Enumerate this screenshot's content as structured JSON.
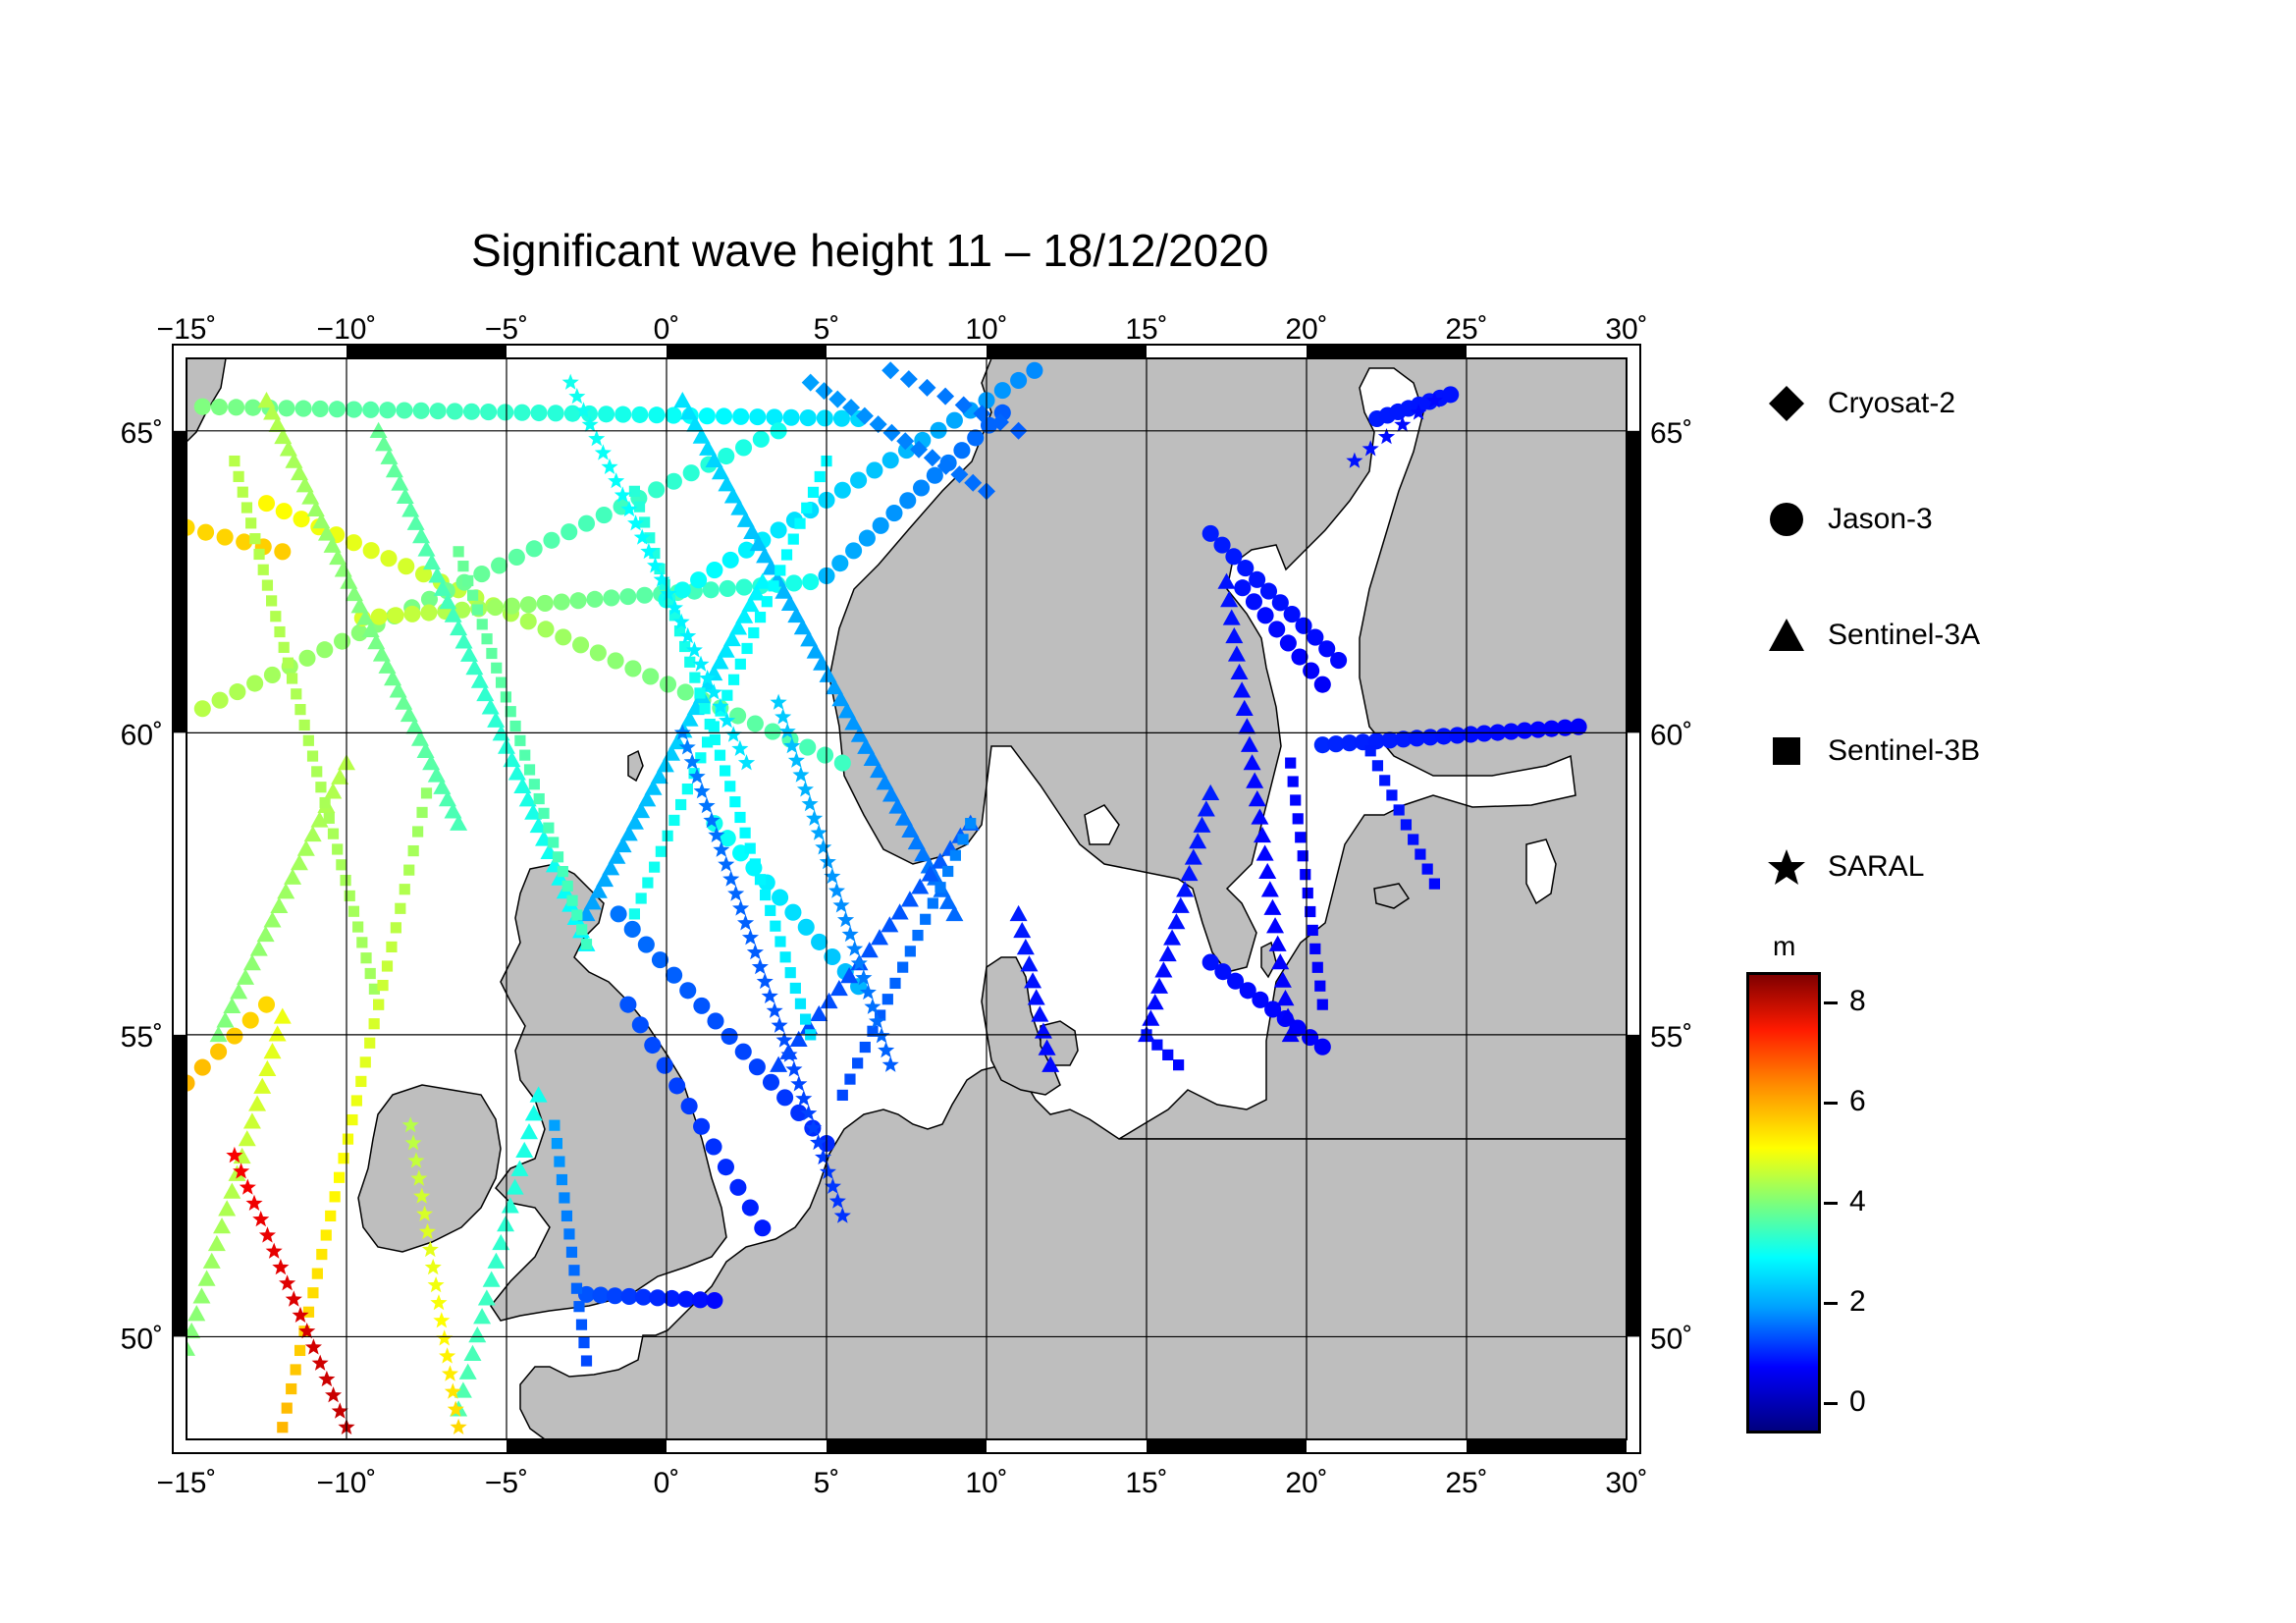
{
  "title": "Significant wave height 11 – 18/12/2020",
  "map": {
    "lon_range": [
      -15,
      30
    ],
    "lat_range": [
      48.3,
      66.2
    ],
    "lon_ticks": [
      {
        "lon": -15,
        "label": "−15˚"
      },
      {
        "lon": -10,
        "label": "−10˚"
      },
      {
        "lon": -5,
        "label": "−5˚"
      },
      {
        "lon": 0,
        "label": "0˚"
      },
      {
        "lon": 5,
        "label": "5˚"
      },
      {
        "lon": 10,
        "label": "10˚"
      },
      {
        "lon": 15,
        "label": "15˚"
      },
      {
        "lon": 20,
        "label": "20˚"
      },
      {
        "lon": 25,
        "label": "25˚"
      },
      {
        "lon": 30,
        "label": "30˚"
      }
    ],
    "lat_ticks": [
      {
        "lat": 50,
        "label": "50˚"
      },
      {
        "lat": 55,
        "label": "55˚"
      },
      {
        "lat": 60,
        "label": "60˚"
      },
      {
        "lat": 65,
        "label": "65˚"
      }
    ],
    "colors": {
      "land": "#bebebe",
      "sea": "#ffffff",
      "coast": "#000000",
      "grid": "#000000"
    }
  },
  "legend": {
    "items": [
      {
        "symbol": "diamond",
        "label": "Cryosat-2"
      },
      {
        "symbol": "circle",
        "label": "Jason-3"
      },
      {
        "symbol": "triangle",
        "label": "Sentinel-3A"
      },
      {
        "symbol": "square",
        "label": "Sentinel-3B"
      },
      {
        "symbol": "star",
        "label": "SARAL"
      }
    ]
  },
  "colorbar": {
    "unit": "m",
    "min": -0.6,
    "max": 8.6,
    "ticks": [
      {
        "value": 0,
        "label": "0"
      },
      {
        "value": 2,
        "label": "2"
      },
      {
        "value": 4,
        "label": "4"
      },
      {
        "value": 6,
        "label": "6"
      },
      {
        "value": 8,
        "label": "8"
      }
    ]
  },
  "tracks": [
    {
      "satellite": "Jason-3",
      "start": [
        -14.5,
        65.4
      ],
      "end": [
        6.0,
        65.2
      ],
      "hs": [
        4.0,
        2.5
      ],
      "n": 40
    },
    {
      "satellite": "Jason-3",
      "start": [
        -12.5,
        63.8
      ],
      "end": [
        5.5,
        59.5
      ],
      "hs": [
        5.2,
        3.4
      ],
      "n": 34
    },
    {
      "satellite": "Jason-3",
      "start": [
        -14.5,
        60.4
      ],
      "end": [
        3.5,
        65.0
      ],
      "hs": [
        4.5,
        3.0
      ],
      "n": 34
    },
    {
      "satellite": "Jason-3",
      "start": [
        -9.5,
        61.9
      ],
      "end": [
        4.5,
        62.5
      ],
      "hs": [
        4.8,
        3.0
      ],
      "n": 28
    },
    {
      "satellite": "Jason-3",
      "start": [
        0.0,
        62.2
      ],
      "end": [
        11.5,
        66.0
      ],
      "hs": [
        3.0,
        1.8
      ],
      "n": 24
    },
    {
      "satellite": "Jason-3",
      "start": [
        5.0,
        62.6
      ],
      "end": [
        10.5,
        65.3
      ],
      "hs": [
        2.2,
        1.4
      ],
      "n": 14
    },
    {
      "satellite": "Jason-3",
      "start": [
        -1.5,
        57.0
      ],
      "end": [
        5.0,
        53.2
      ],
      "hs": [
        1.6,
        0.9
      ],
      "n": 16
    },
    {
      "satellite": "Jason-3",
      "start": [
        -1.2,
        55.5
      ],
      "end": [
        3.0,
        51.8
      ],
      "hs": [
        1.3,
        0.8
      ],
      "n": 12
    },
    {
      "satellite": "Jason-3",
      "start": [
        1.5,
        58.5
      ],
      "end": [
        6.0,
        55.8
      ],
      "hs": [
        3.0,
        2.2
      ],
      "n": 12
    },
    {
      "satellite": "Jason-3",
      "start": [
        -2.5,
        50.7
      ],
      "end": [
        1.5,
        50.6
      ],
      "hs": [
        1.3,
        0.6
      ],
      "n": 10
    },
    {
      "satellite": "Jason-3",
      "start": [
        17.0,
        63.3
      ],
      "end": [
        21.0,
        61.2
      ],
      "hs": [
        0.8,
        0.6
      ],
      "n": 12
    },
    {
      "satellite": "Jason-3",
      "start": [
        18.0,
        62.4
      ],
      "end": [
        20.5,
        60.8
      ],
      "hs": [
        0.7,
        0.5
      ],
      "n": 8
    },
    {
      "satellite": "Jason-3",
      "start": [
        20.5,
        59.8
      ],
      "end": [
        28.5,
        60.1
      ],
      "hs": [
        0.9,
        0.5
      ],
      "n": 20
    },
    {
      "satellite": "Jason-3",
      "start": [
        22.2,
        65.2
      ],
      "end": [
        24.5,
        65.6
      ],
      "hs": [
        0.8,
        0.7
      ],
      "n": 8
    },
    {
      "satellite": "Jason-3",
      "start": [
        17.0,
        56.2
      ],
      "end": [
        20.5,
        54.8
      ],
      "hs": [
        0.7,
        0.5
      ],
      "n": 10
    },
    {
      "satellite": "Jason-3",
      "start": [
        -15.0,
        54.2
      ],
      "end": [
        -12.5,
        55.5
      ],
      "hs": [
        5.8,
        5.5
      ],
      "n": 6
    },
    {
      "satellite": "Jason-3",
      "start": [
        -12.0,
        63.0
      ],
      "end": [
        -15.0,
        63.4
      ],
      "hs": [
        5.6,
        5.5
      ],
      "n": 6
    },
    {
      "satellite": "Sentinel-3A",
      "start": [
        -9.0,
        65.0
      ],
      "end": [
        -2.5,
        56.5
      ],
      "hs": [
        3.8,
        2.8
      ],
      "n": 40
    },
    {
      "satellite": "Sentinel-3A",
      "start": [
        -12.5,
        65.5
      ],
      "end": [
        -6.5,
        58.5
      ],
      "hs": [
        4.5,
        3.5
      ],
      "n": 36
    },
    {
      "satellite": "Sentinel-3A",
      "start": [
        0.5,
        65.5
      ],
      "end": [
        9.0,
        57.0
      ],
      "hs": [
        2.6,
        1.5
      ],
      "n": 44
    },
    {
      "satellite": "Sentinel-3A",
      "start": [
        3.0,
        62.5
      ],
      "end": [
        -2.5,
        57.0
      ],
      "hs": [
        2.8,
        2.0
      ],
      "n": 30
    },
    {
      "satellite": "Sentinel-3A",
      "start": [
        -10.0,
        59.5
      ],
      "end": [
        -14.0,
        55.0
      ],
      "hs": [
        4.5,
        4.0
      ],
      "n": 20
    },
    {
      "satellite": "Sentinel-3A",
      "start": [
        -15.0,
        49.8
      ],
      "end": [
        -12.0,
        55.3
      ],
      "hs": [
        4.0,
        5.0
      ],
      "n": 20
    },
    {
      "satellite": "Sentinel-3A",
      "start": [
        -6.5,
        48.8
      ],
      "end": [
        -4.0,
        54.0
      ],
      "hs": [
        3.6,
        3.0
      ],
      "n": 18
    },
    {
      "satellite": "Sentinel-3A",
      "start": [
        11.0,
        57.0
      ],
      "end": [
        12.0,
        54.5
      ],
      "hs": [
        0.8,
        0.6
      ],
      "n": 10
    },
    {
      "satellite": "Sentinel-3A",
      "start": [
        17.5,
        62.5
      ],
      "end": [
        19.5,
        55.0
      ],
      "hs": [
        0.7,
        0.5
      ],
      "n": 26
    },
    {
      "satellite": "Sentinel-3A",
      "start": [
        17.0,
        59.0
      ],
      "end": [
        15.0,
        55.0
      ],
      "hs": [
        0.8,
        0.6
      ],
      "n": 16
    },
    {
      "satellite": "Sentinel-3A",
      "start": [
        3.5,
        54.5
      ],
      "end": [
        9.5,
        58.5
      ],
      "hs": [
        1.2,
        1.4
      ],
      "n": 20
    },
    {
      "satellite": "Sentinel-3B",
      "start": [
        -13.5,
        64.5
      ],
      "end": [
        -9.0,
        55.5
      ],
      "hs": [
        4.5,
        4.3
      ],
      "n": 36
    },
    {
      "satellite": "Sentinel-3B",
      "start": [
        -6.5,
        63.0
      ],
      "end": [
        -2.5,
        56.5
      ],
      "hs": [
        3.8,
        3.4
      ],
      "n": 28
    },
    {
      "satellite": "Sentinel-3B",
      "start": [
        -1.0,
        64.0
      ],
      "end": [
        4.5,
        55.0
      ],
      "hs": [
        3.2,
        2.6
      ],
      "n": 36
    },
    {
      "satellite": "Sentinel-3B",
      "start": [
        5.0,
        64.5
      ],
      "end": [
        -1.0,
        57.0
      ],
      "hs": [
        2.8,
        3.0
      ],
      "n": 30
    },
    {
      "satellite": "Sentinel-3B",
      "start": [
        -7.5,
        59.0
      ],
      "end": [
        -12.0,
        48.5
      ],
      "hs": [
        4.2,
        5.8
      ],
      "n": 34
    },
    {
      "satellite": "Sentinel-3B",
      "start": [
        -3.5,
        53.5
      ],
      "end": [
        -2.5,
        49.6
      ],
      "hs": [
        2.0,
        1.2
      ],
      "n": 14
    },
    {
      "satellite": "Sentinel-3B",
      "start": [
        5.5,
        54.0
      ],
      "end": [
        9.5,
        58.5
      ],
      "hs": [
        1.2,
        1.8
      ],
      "n": 18
    },
    {
      "satellite": "Sentinel-3B",
      "start": [
        15.0,
        55.0
      ],
      "end": [
        16.0,
        54.5
      ],
      "hs": [
        0.7,
        0.6
      ],
      "n": 4
    },
    {
      "satellite": "Sentinel-3B",
      "start": [
        19.5,
        59.5
      ],
      "end": [
        20.5,
        55.5
      ],
      "hs": [
        0.6,
        0.5
      ],
      "n": 14
    },
    {
      "satellite": "Sentinel-3B",
      "start": [
        22.0,
        59.7
      ],
      "end": [
        24.0,
        57.5
      ],
      "hs": [
        0.8,
        0.6
      ],
      "n": 10
    },
    {
      "satellite": "SARAL",
      "start": [
        -3.0,
        65.8
      ],
      "end": [
        2.5,
        59.5
      ],
      "hs": [
        3.0,
        2.6
      ],
      "n": 28
    },
    {
      "satellite": "SARAL",
      "start": [
        0.5,
        60.0
      ],
      "end": [
        5.5,
        52.0
      ],
      "hs": [
        1.7,
        1.0
      ],
      "n": 34
    },
    {
      "satellite": "SARAL",
      "start": [
        3.5,
        60.5
      ],
      "end": [
        7.0,
        54.5
      ],
      "hs": [
        2.4,
        1.4
      ],
      "n": 26
    },
    {
      "satellite": "SARAL",
      "start": [
        -13.5,
        53.0
      ],
      "end": [
        -10.0,
        48.5
      ],
      "hs": [
        7.5,
        8.0
      ],
      "n": 18
    },
    {
      "satellite": "SARAL",
      "start": [
        -8.0,
        53.5
      ],
      "end": [
        -6.5,
        48.5
      ],
      "hs": [
        4.5,
        5.5
      ],
      "n": 18
    },
    {
      "satellite": "SARAL",
      "start": [
        21.5,
        64.5
      ],
      "end": [
        24.0,
        65.5
      ],
      "hs": [
        0.7,
        0.6
      ],
      "n": 6
    },
    {
      "satellite": "Cryosat-2",
      "start": [
        4.5,
        65.8
      ],
      "end": [
        10.0,
        64.0
      ],
      "hs": [
        2.0,
        1.5
      ],
      "n": 14
    },
    {
      "satellite": "Cryosat-2",
      "start": [
        7.0,
        66.0
      ],
      "end": [
        11.0,
        65.0
      ],
      "hs": [
        1.8,
        1.4
      ],
      "n": 8
    }
  ]
}
